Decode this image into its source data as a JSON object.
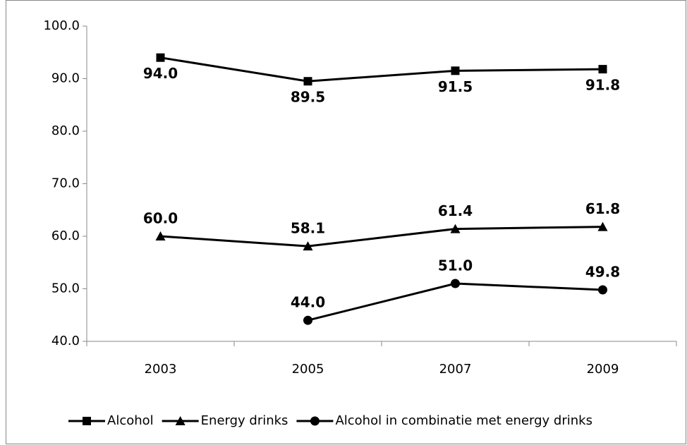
{
  "chart_data": {
    "type": "line",
    "categories": [
      "2003",
      "2005",
      "2007",
      "2009"
    ],
    "series": [
      {
        "name": "Alcohol",
        "color": "#000000",
        "marker": "square",
        "label_position": "below",
        "values": [
          94.0,
          89.5,
          91.5,
          91.8
        ],
        "value_labels": [
          "94.0",
          "89.5",
          "91.5",
          "91.8"
        ]
      },
      {
        "name": "Energy drinks",
        "color": "#000000",
        "marker": "triangle",
        "label_position": "above",
        "values": [
          60.0,
          58.1,
          61.4,
          61.8
        ],
        "value_labels": [
          "60.0",
          "58.1",
          "61.4",
          "61.8"
        ]
      },
      {
        "name": "Alcohol in combinatie met energy drinks",
        "color": "#000000",
        "marker": "circle",
        "label_position": "above",
        "values": [
          null,
          44.0,
          51.0,
          49.8
        ],
        "value_labels": [
          null,
          "44.0",
          "51.0",
          "49.8"
        ]
      }
    ],
    "ylim": [
      40,
      100
    ],
    "yticks": [
      {
        "value": 40,
        "label": "40.0"
      },
      {
        "value": 50,
        "label": "50.0"
      },
      {
        "value": 60,
        "label": "60.0"
      },
      {
        "value": 70,
        "label": "70.0"
      },
      {
        "value": 80,
        "label": "80.0"
      },
      {
        "value": 90,
        "label": "90.0"
      },
      {
        "value": 100,
        "label": "100.0"
      }
    ],
    "grid": false,
    "legend": "bottom"
  }
}
